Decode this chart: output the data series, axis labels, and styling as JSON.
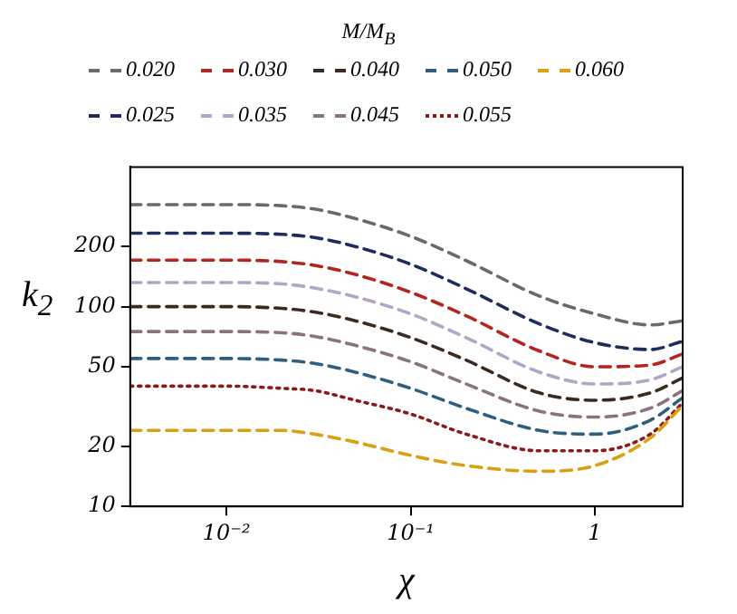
{
  "chart_data": {
    "type": "line",
    "xlabel": "χ",
    "ylabel": "k$_{2}$",
    "legend_title": "M/M$_{B}$",
    "legend": "top",
    "log": "xy",
    "grid": false,
    "marker": "none",
    "x": [
      0.003,
      0.01,
      0.02,
      0.03,
      0.05,
      0.1,
      0.2,
      0.5,
      1,
      2,
      3
    ],
    "xlim": [
      0.003,
      3
    ],
    "ylim": [
      10,
      500
    ],
    "xticks": [
      {
        "value": 0.01,
        "label": "10⁻²"
      },
      {
        "value": 0.1,
        "label": "10⁻¹"
      },
      1
    ],
    "yticks": [
      10,
      20,
      50,
      100,
      200
    ],
    "series": [
      {
        "name": "0.020",
        "color": "#6a6a6a",
        "line_style": "dashed",
        "values": [
          324,
          324,
          320,
          308,
          276,
          225,
          170,
          113,
          92,
          81,
          85
        ]
      },
      {
        "name": "0.030",
        "color": "#b3261e",
        "line_style": "dashed",
        "values": [
          171,
          171,
          168,
          161,
          145,
          118,
          90,
          60,
          50,
          51,
          58
        ]
      },
      {
        "name": "0.040",
        "color": "#3b2a20",
        "line_style": "dashed",
        "values": [
          100,
          100,
          98,
          94,
          85,
          70,
          54,
          37,
          34,
          37,
          44
        ]
      },
      {
        "name": "0.050",
        "color": "#2f5f7f",
        "line_style": "dashed",
        "values": [
          55,
          55,
          54,
          52,
          47,
          39,
          31,
          24,
          23,
          27,
          35
        ]
      },
      {
        "name": "0.060",
        "color": "#d9a012",
        "line_style": "dashed",
        "values": [
          24,
          24,
          24,
          23,
          21,
          18,
          16,
          15,
          16,
          22,
          32
        ]
      },
      {
        "name": "0.025",
        "color": "#1f2d5c",
        "line_style": "dashed",
        "values": [
          233,
          233,
          230,
          222,
          200,
          163,
          123,
          82,
          66,
          61,
          67
        ]
      },
      {
        "name": "0.035",
        "color": "#b4a4c8",
        "line_style": "dashed",
        "values": [
          132,
          132,
          130,
          124,
          112,
          92,
          70,
          47,
          41,
          43,
          50
        ]
      },
      {
        "name": "0.045",
        "color": "#8a7282",
        "line_style": "dashed",
        "values": [
          75,
          75,
          74,
          71,
          64,
          53,
          41,
          30,
          28,
          31,
          38
        ]
      },
      {
        "name": "0.055",
        "color": "#8b1a1a",
        "line_style": "dotted",
        "values": [
          40,
          40,
          39,
          38,
          34,
          29,
          23,
          19,
          19,
          23,
          33
        ]
      }
    ]
  }
}
